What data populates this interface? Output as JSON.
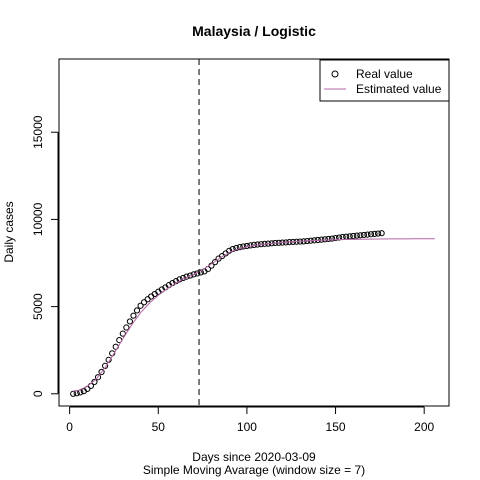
{
  "chart_data": {
    "type": "scatter",
    "title": "Malaysia / Logistic",
    "xlabel": "Days since 2020-03-09",
    "subtitle": "Simple Moving Avarage (window size = 7)",
    "ylabel": "Daily cases",
    "xlim": [
      -6,
      214
    ],
    "ylim": [
      -700,
      19200
    ],
    "xticks": [
      0,
      50,
      100,
      150,
      200
    ],
    "yticks": [
      0,
      5000,
      10000,
      15000
    ],
    "vline_x": 73,
    "legend": {
      "position": "top-right",
      "entries": [
        {
          "label": "Real value",
          "symbol": "circle",
          "color": "#000000"
        },
        {
          "label": "Estimated value",
          "symbol": "line",
          "color": "#b565a7"
        }
      ]
    },
    "series": [
      {
        "name": "Real value",
        "color": "#000000",
        "x": [
          2,
          4,
          6,
          8,
          10,
          12,
          14,
          16,
          18,
          20,
          22,
          24,
          26,
          28,
          30,
          32,
          34,
          36,
          38,
          40,
          42,
          44,
          46,
          48,
          50,
          52,
          54,
          56,
          58,
          60,
          62,
          64,
          66,
          68,
          70,
          72,
          74,
          76,
          78,
          80,
          82,
          84,
          86,
          88,
          90,
          92,
          94,
          96,
          98,
          100,
          102,
          104,
          106,
          108,
          110,
          112,
          114,
          116,
          118,
          120,
          122,
          124,
          126,
          128,
          130,
          132,
          134,
          136,
          138,
          140,
          142,
          144,
          146,
          148,
          150,
          152,
          154,
          156,
          158,
          160,
          162,
          164,
          166,
          168,
          170,
          172,
          174,
          176
        ],
        "y": [
          0,
          30,
          80,
          150,
          280,
          450,
          680,
          950,
          1250,
          1600,
          1950,
          2320,
          2700,
          3080,
          3450,
          3800,
          4150,
          4480,
          4780,
          5050,
          5250,
          5420,
          5580,
          5720,
          5850,
          5980,
          6100,
          6230,
          6350,
          6460,
          6560,
          6640,
          6720,
          6780,
          6850,
          6900,
          6960,
          7020,
          7150,
          7350,
          7550,
          7750,
          7900,
          8050,
          8200,
          8300,
          8360,
          8410,
          8450,
          8480,
          8510,
          8540,
          8560,
          8580,
          8600,
          8610,
          8630,
          8650,
          8660,
          8670,
          8680,
          8700,
          8710,
          8720,
          8730,
          8740,
          8760,
          8780,
          8800,
          8820,
          8840,
          8860,
          8880,
          8900,
          8930,
          8960,
          8990,
          9010,
          9030,
          9050,
          9070,
          9090,
          9110,
          9130,
          9150,
          9170,
          9190,
          9210
        ]
      },
      {
        "name": "Estimated value",
        "color": "#b565a7",
        "x": [
          2,
          5,
          10,
          15,
          20,
          25,
          30,
          35,
          40,
          45,
          50,
          55,
          60,
          65,
          70,
          75,
          80,
          85,
          90,
          95,
          100,
          105,
          110,
          115,
          120,
          125,
          130,
          135,
          140,
          145,
          150,
          155,
          160,
          165,
          170,
          175,
          180,
          185,
          190,
          195,
          200,
          206
        ],
        "y": [
          150,
          200,
          430,
          850,
          1500,
          2300,
          3150,
          3950,
          4650,
          5200,
          5650,
          6020,
          6350,
          6620,
          6850,
          7100,
          7450,
          7800,
          8100,
          8300,
          8430,
          8520,
          8580,
          8630,
          8680,
          8720,
          8750,
          8775,
          8800,
          8820,
          8835,
          8848,
          8858,
          8866,
          8872,
          8877,
          8881,
          8884,
          8886,
          8888,
          8889,
          8890
        ]
      }
    ]
  }
}
